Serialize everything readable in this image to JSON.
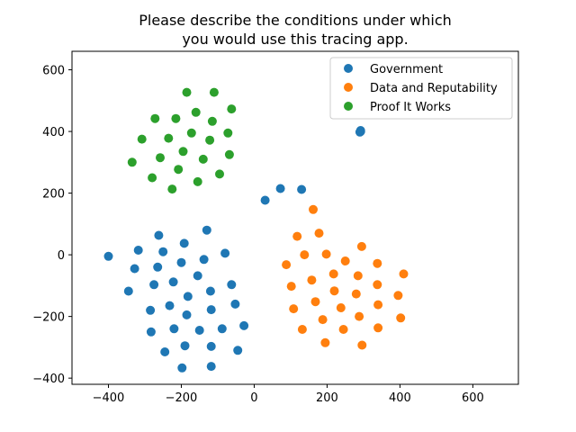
{
  "chart_data": {
    "type": "scatter",
    "title_lines": [
      "Please describe the conditions under which",
      "you would use this tracing app."
    ],
    "xlabel": "",
    "ylabel": "",
    "xlim": [
      -500,
      725
    ],
    "ylim": [
      -420,
      660
    ],
    "xticks": [
      -400,
      -200,
      0,
      200,
      400,
      600
    ],
    "yticks": [
      -400,
      -200,
      0,
      200,
      400,
      600
    ],
    "grid": false,
    "legend_position": "top-right",
    "series": [
      {
        "name": "Government",
        "color": "#1f77b4",
        "points": [
          [
            -400,
            -5
          ],
          [
            -328,
            -45
          ],
          [
            -318,
            15
          ],
          [
            -345,
            -118
          ],
          [
            -285,
            -180
          ],
          [
            -283,
            -250
          ],
          [
            -275,
            -97
          ],
          [
            -265,
            -40
          ],
          [
            -262,
            63
          ],
          [
            -250,
            10
          ],
          [
            -245,
            -315
          ],
          [
            -232,
            -165
          ],
          [
            -222,
            -88
          ],
          [
            -220,
            -240
          ],
          [
            -200,
            -25
          ],
          [
            -198,
            -367
          ],
          [
            -192,
            37
          ],
          [
            -190,
            -295
          ],
          [
            -185,
            -195
          ],
          [
            -182,
            -135
          ],
          [
            -155,
            -68
          ],
          [
            -150,
            -245
          ],
          [
            -138,
            -15
          ],
          [
            -130,
            80
          ],
          [
            -120,
            -118
          ],
          [
            -118,
            -178
          ],
          [
            -118,
            -297
          ],
          [
            -118,
            -362
          ],
          [
            -88,
            -240
          ],
          [
            -80,
            5
          ],
          [
            -62,
            -97
          ],
          [
            -52,
            -160
          ],
          [
            -45,
            -310
          ],
          [
            -28,
            -230
          ],
          [
            30,
            177
          ],
          [
            72,
            215
          ],
          [
            130,
            212
          ],
          [
            292,
            400
          ],
          [
            292,
            403
          ],
          [
            290,
            398
          ]
        ]
      },
      {
        "name": "Data and Reputability",
        "color": "#ff7f0e",
        "points": [
          [
            162,
            147
          ],
          [
            178,
            70
          ],
          [
            118,
            60
          ],
          [
            295,
            27
          ],
          [
            138,
            0
          ],
          [
            198,
            2
          ],
          [
            250,
            -20
          ],
          [
            88,
            -32
          ],
          [
            338,
            -28
          ],
          [
            410,
            -62
          ],
          [
            218,
            -62
          ],
          [
            285,
            -68
          ],
          [
            158,
            -82
          ],
          [
            102,
            -102
          ],
          [
            338,
            -97
          ],
          [
            220,
            -117
          ],
          [
            280,
            -127
          ],
          [
            395,
            -132
          ],
          [
            168,
            -152
          ],
          [
            108,
            -175
          ],
          [
            238,
            -172
          ],
          [
            340,
            -162
          ],
          [
            288,
            -200
          ],
          [
            402,
            -205
          ],
          [
            188,
            -210
          ],
          [
            132,
            -242
          ],
          [
            245,
            -242
          ],
          [
            340,
            -237
          ],
          [
            195,
            -285
          ],
          [
            296,
            -293
          ]
        ]
      },
      {
        "name": "Proof It Works",
        "color": "#2ca02c",
        "points": [
          [
            -185,
            527
          ],
          [
            -110,
            527
          ],
          [
            -160,
            462
          ],
          [
            -62,
            473
          ],
          [
            -272,
            442
          ],
          [
            -215,
            442
          ],
          [
            -115,
            433
          ],
          [
            -308,
            375
          ],
          [
            -235,
            378
          ],
          [
            -172,
            395
          ],
          [
            -72,
            395
          ],
          [
            -122,
            372
          ],
          [
            -195,
            335
          ],
          [
            -68,
            325
          ],
          [
            -258,
            315
          ],
          [
            -140,
            310
          ],
          [
            -335,
            300
          ],
          [
            -208,
            277
          ],
          [
            -95,
            262
          ],
          [
            -280,
            250
          ],
          [
            -155,
            237
          ],
          [
            -225,
            213
          ]
        ]
      }
    ]
  }
}
